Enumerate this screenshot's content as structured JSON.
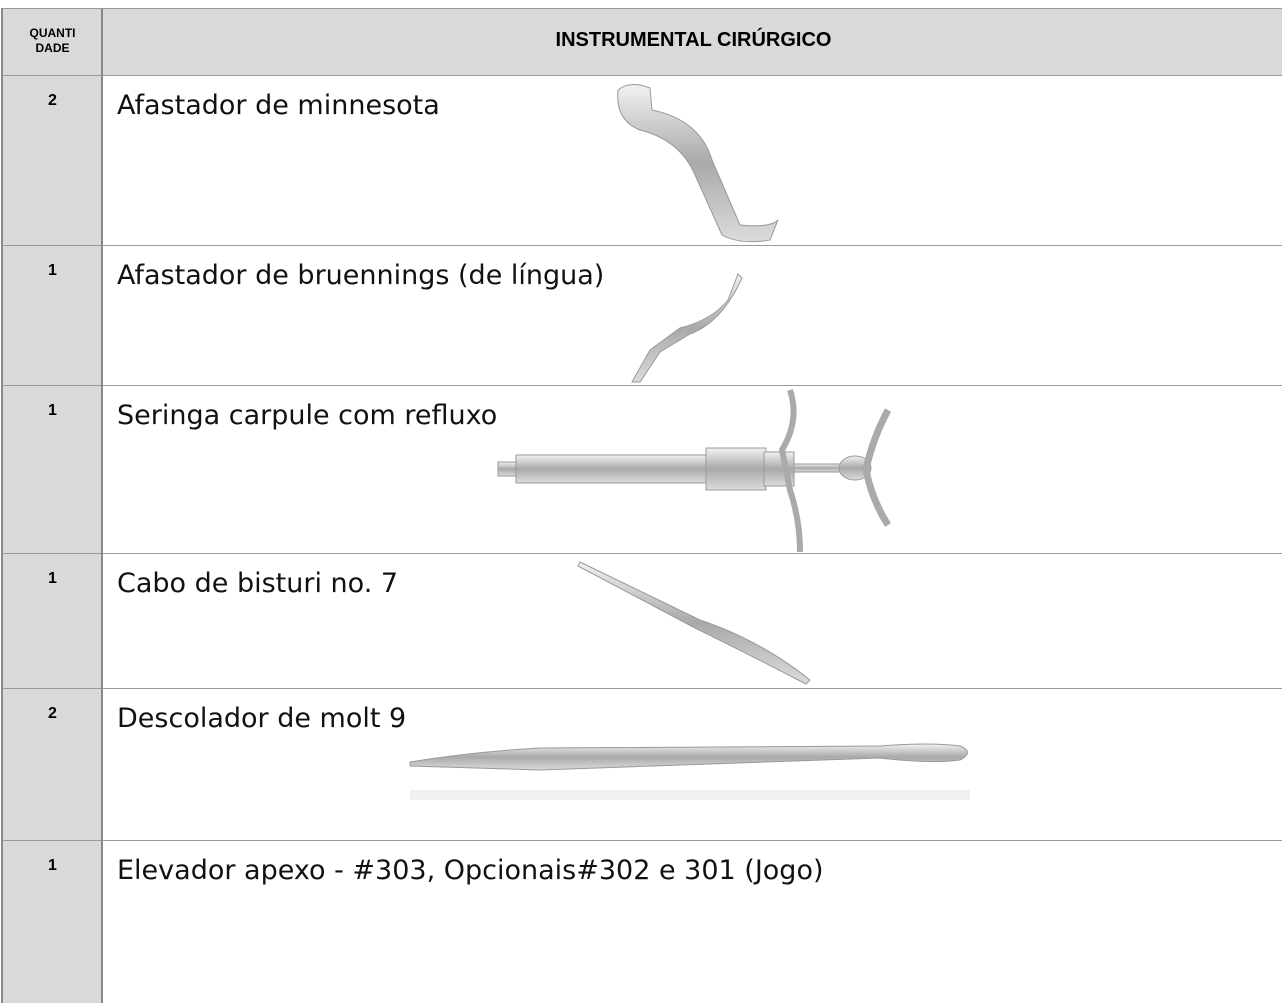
{
  "header": {
    "quantity": [
      "QUANTI",
      "DADE"
    ],
    "instrument": "INSTRUMENTAL CIRÚRGICO"
  },
  "rows": [
    {
      "quantity": "2",
      "item": "Afastador de minnesota"
    },
    {
      "quantity": "1",
      "item": "Afastador de bruennings (de língua)"
    },
    {
      "quantity": "1",
      "item": "Seringa carpule com refluxo"
    },
    {
      "quantity": "1",
      "item": "Cabo de bisturi no. 7"
    },
    {
      "quantity": "2",
      "item": "Descolador de molt 9"
    },
    {
      "quantity": "1",
      "item": "Elevador apexo - #303, Opcionais#302 e 301 (Jogo)"
    }
  ]
}
